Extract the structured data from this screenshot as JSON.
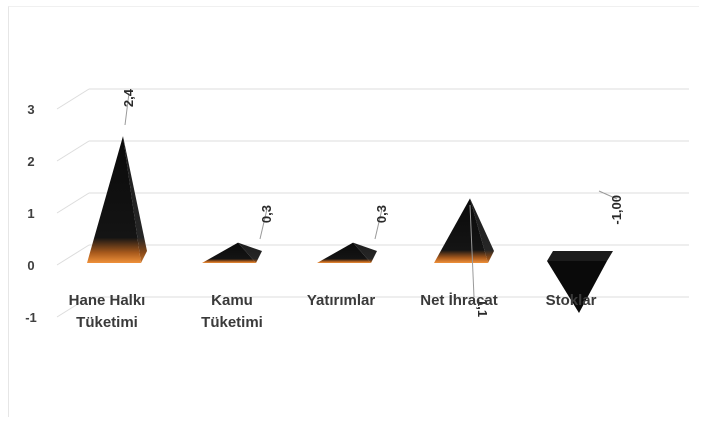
{
  "chart_data": {
    "type": "bar",
    "style": "3d-pyramid",
    "title": "",
    "xlabel": "",
    "ylabel": "",
    "ylim": [
      -1,
      3
    ],
    "y_ticks": [
      "-1",
      "0",
      "1",
      "2",
      "3"
    ],
    "grid": true,
    "categories": [
      [
        "Hane Halkı",
        "Tüketimi"
      ],
      [
        "Kamu",
        "Tüketimi"
      ],
      [
        "Yatırımlar"
      ],
      [
        "Net İhracat"
      ],
      [
        "Stoklar"
      ]
    ],
    "values": [
      2.4,
      0.3,
      0.3,
      1.1,
      -1.0
    ],
    "data_labels": [
      "2,4",
      "0,3",
      "0,3",
      "1,1",
      "-1,00"
    ],
    "colors": {
      "fill_dark": "#0a0a0a",
      "fill_accent": "#e8842e",
      "grid": "#dcdcdc",
      "text": "#404040",
      "leader": "#9a9a9a"
    }
  }
}
